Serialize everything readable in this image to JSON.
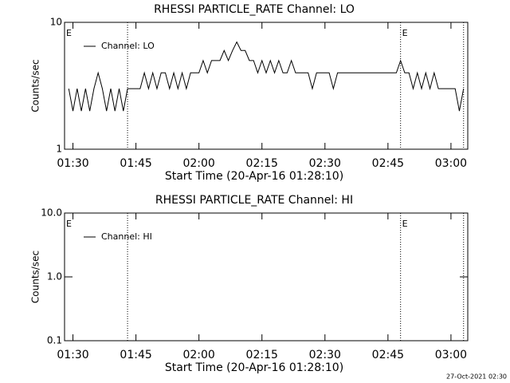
{
  "chart_data": [
    {
      "type": "line",
      "title": "RHESSI PARTICLE_RATE Channel: LO",
      "ylabel": "Counts/sec",
      "xlabel": "Start Time (20-Apr-16 01:28:10)",
      "ylog": true,
      "ylim": [
        1,
        10
      ],
      "yticks": [
        1,
        10
      ],
      "xlim": [
        "01:28",
        "03:04"
      ],
      "xticks": [
        "01:30",
        "01:45",
        "02:00",
        "02:15",
        "02:30",
        "02:45",
        "03:00"
      ],
      "legend": "upper left",
      "annotations": [
        {
          "text": "E",
          "x": "01:28"
        },
        {
          "text": "E",
          "x": "02:48"
        }
      ],
      "markers": [
        "01:43",
        "02:48",
        "03:03"
      ],
      "x": [
        "01:29",
        "01:30",
        "01:31",
        "01:32",
        "01:33",
        "01:34",
        "01:35",
        "01:36",
        "01:37",
        "01:38",
        "01:39",
        "01:40",
        "01:41",
        "01:42",
        "01:43",
        "01:44",
        "01:45",
        "01:46",
        "01:47",
        "01:48",
        "01:49",
        "01:50",
        "01:51",
        "01:52",
        "01:53",
        "01:54",
        "01:55",
        "01:56",
        "01:57",
        "01:58",
        "01:59",
        "02:00",
        "02:01",
        "02:02",
        "02:03",
        "02:04",
        "02:05",
        "02:06",
        "02:07",
        "02:08",
        "02:09",
        "02:10",
        "02:11",
        "02:12",
        "02:13",
        "02:14",
        "02:15",
        "02:16",
        "02:17",
        "02:18",
        "02:19",
        "02:20",
        "02:21",
        "02:22",
        "02:23",
        "02:24",
        "02:25",
        "02:26",
        "02:27",
        "02:28",
        "02:29",
        "02:30",
        "02:31",
        "02:32",
        "02:33",
        "02:34",
        "02:35",
        "02:36",
        "02:37",
        "02:38",
        "02:39",
        "02:40",
        "02:41",
        "02:42",
        "02:43",
        "02:44",
        "02:45",
        "02:46",
        "02:47",
        "02:48",
        "02:49",
        "02:50",
        "02:51",
        "02:52",
        "02:53",
        "02:54",
        "02:55",
        "02:56",
        "02:57",
        "02:58",
        "02:59",
        "03:00",
        "03:01",
        "03:02",
        "03:03"
      ],
      "series": [
        {
          "name": "Channel: LO",
          "color": "#000000",
          "values": [
            3,
            2,
            3,
            2,
            3,
            2,
            3,
            4,
            3,
            2,
            3,
            2,
            3,
            2,
            3,
            3,
            3,
            3,
            4,
            3,
            4,
            3,
            4,
            4,
            3,
            4,
            3,
            4,
            3,
            4,
            4,
            4,
            5,
            4,
            5,
            5,
            5,
            6,
            5,
            6,
            7,
            6,
            6,
            5,
            5,
            4,
            5,
            4,
            5,
            4,
            5,
            4,
            4,
            5,
            4,
            4,
            4,
            4,
            3,
            4,
            4,
            4,
            4,
            3,
            4,
            4,
            4,
            4,
            4,
            4,
            4,
            4,
            4,
            4,
            4,
            4,
            4,
            4,
            4,
            5,
            4,
            4,
            3,
            4,
            3,
            4,
            3,
            4,
            3,
            3,
            3,
            3,
            3,
            2,
            3
          ]
        }
      ]
    },
    {
      "type": "line",
      "title": "RHESSI PARTICLE_RATE Channel: HI",
      "ylabel": "Counts/sec",
      "xlabel": "Start Time (20-Apr-16 01:28:10)",
      "ylog": true,
      "ylim": [
        0.1,
        10
      ],
      "yticks": [
        0.1,
        {
          "value": 1,
          "label": "1.0"
        },
        {
          "value": 10,
          "label": "10.0"
        }
      ],
      "xlim": [
        "01:28",
        "03:04"
      ],
      "xticks": [
        "01:30",
        "01:45",
        "02:00",
        "02:15",
        "02:30",
        "02:45",
        "03:00"
      ],
      "legend": "upper left",
      "annotations": [
        {
          "text": "E",
          "x": "01:28"
        },
        {
          "text": "E",
          "x": "02:48"
        }
      ],
      "markers": [
        "01:43",
        "02:48",
        "03:03"
      ],
      "x": [],
      "series": [
        {
          "name": "Channel: HI",
          "color": "#000000",
          "values": []
        }
      ]
    }
  ],
  "footer": "27-Oct-2021 02:30"
}
